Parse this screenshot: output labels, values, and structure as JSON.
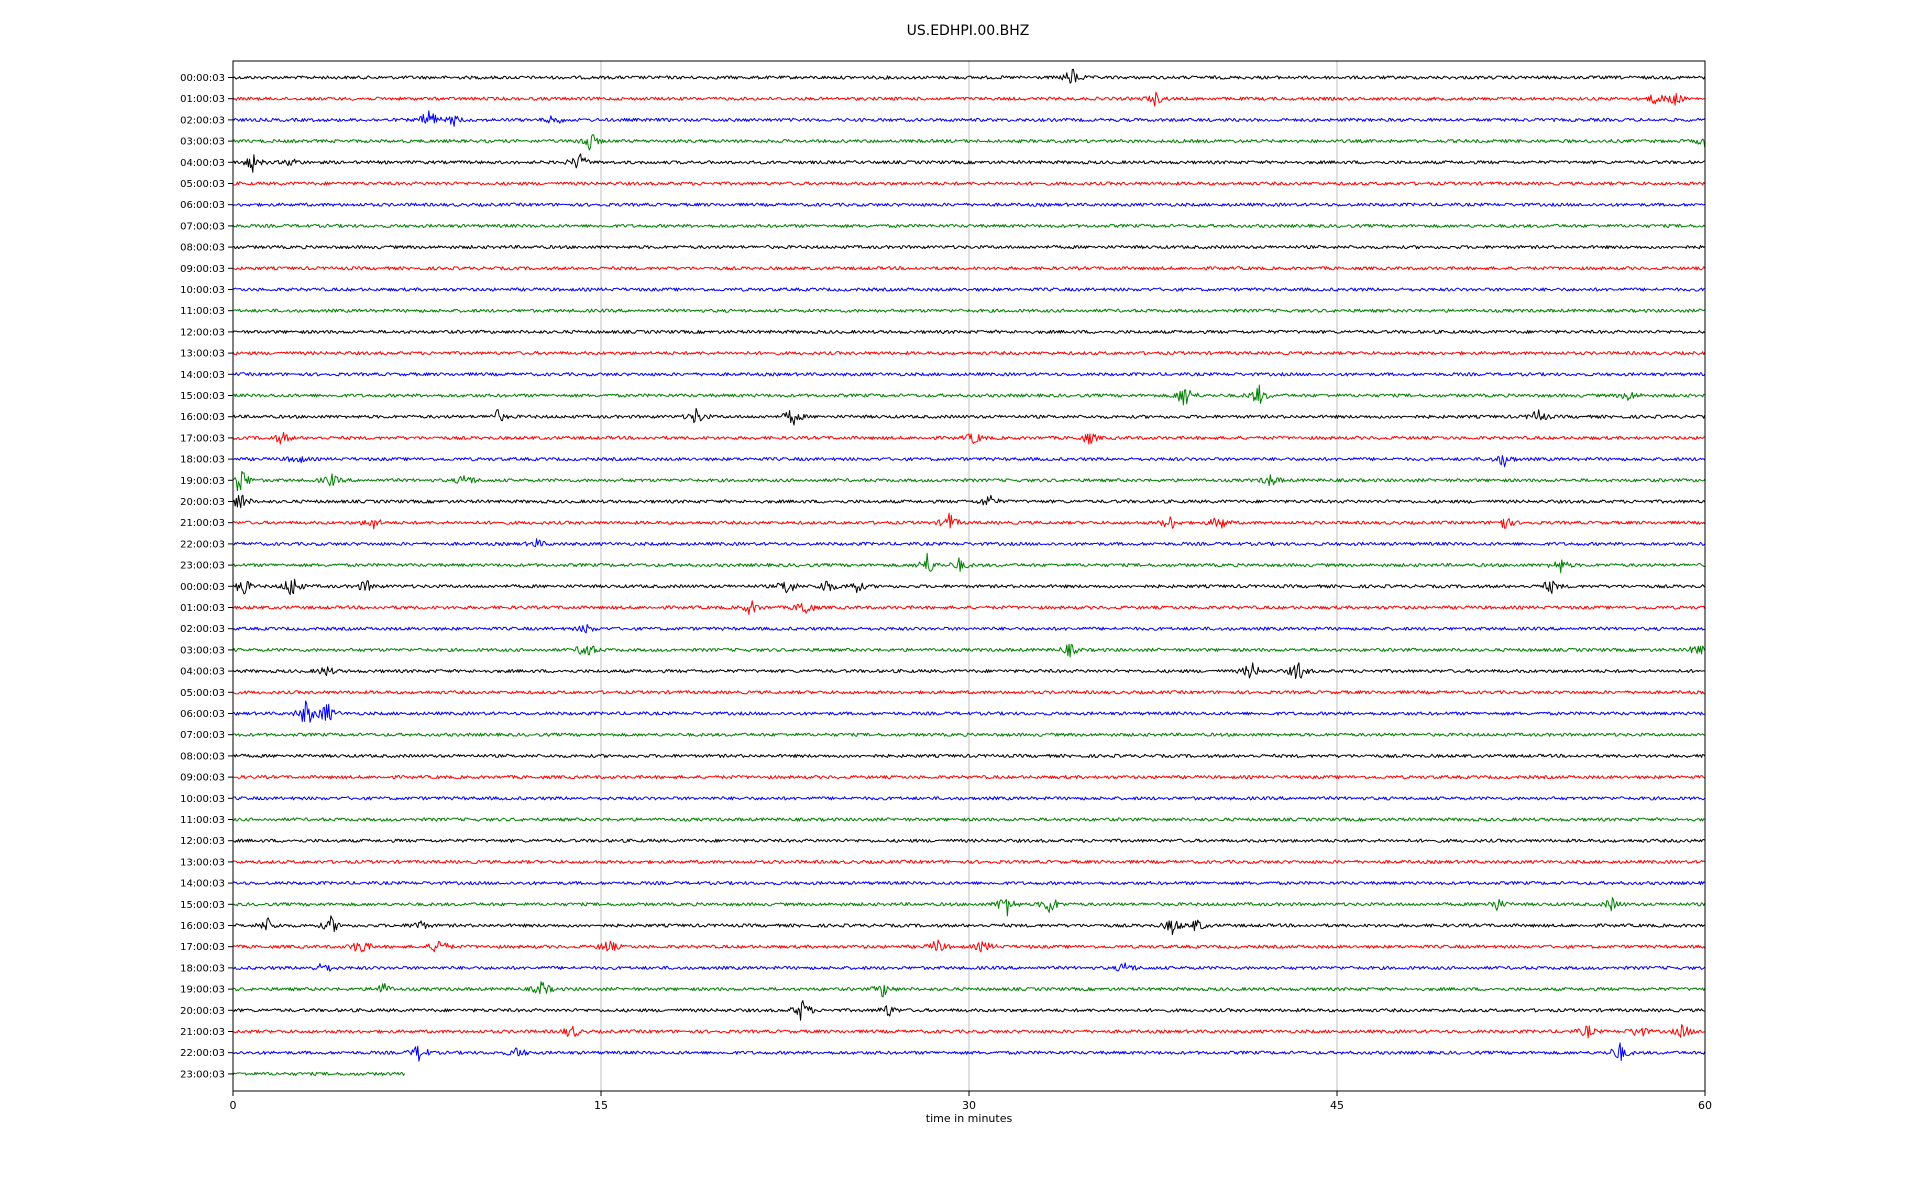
{
  "chart_data": {
    "type": "line",
    "title": "US.EDHPI.00.BHZ",
    "xlabel": "time in minutes",
    "ylabel": "",
    "xlim": [
      0,
      60
    ],
    "xticks": [
      0,
      15,
      30,
      45,
      60
    ],
    "xtick_labels": [
      "0",
      "15",
      "30",
      "45",
      "60"
    ],
    "grid": "vertical",
    "colors": [
      "#000000",
      "#ff0000",
      "#0000ff",
      "#008000"
    ],
    "row_labels": [
      "00:00:03",
      "01:00:03",
      "02:00:03",
      "03:00:03",
      "04:00:03",
      "05:00:03",
      "06:00:03",
      "07:00:03",
      "08:00:03",
      "09:00:03",
      "10:00:03",
      "11:00:03",
      "12:00:03",
      "13:00:03",
      "14:00:03",
      "15:00:03",
      "16:00:03",
      "17:00:03",
      "18:00:03",
      "19:00:03",
      "20:00:03",
      "21:00:03",
      "22:00:03",
      "23:00:03",
      "00:00:03",
      "01:00:03",
      "02:00:03",
      "03:00:03",
      "04:00:03",
      "05:00:03",
      "06:00:03",
      "07:00:03",
      "08:00:03",
      "09:00:03",
      "10:00:03",
      "11:00:03",
      "12:00:03",
      "13:00:03",
      "14:00:03",
      "15:00:03",
      "16:00:03",
      "17:00:03",
      "18:00:03",
      "19:00:03",
      "20:00:03",
      "21:00:03",
      "22:00:03",
      "23:00:03"
    ],
    "trace_end_minute": [
      60,
      60,
      60,
      60,
      60,
      60,
      60,
      60,
      60,
      60,
      60,
      60,
      60,
      60,
      60,
      60,
      60,
      60,
      60,
      60,
      60,
      60,
      60,
      60,
      60,
      60,
      60,
      60,
      60,
      60,
      60,
      60,
      60,
      60,
      60,
      60,
      60,
      60,
      60,
      60,
      60,
      60,
      60,
      60,
      60,
      60,
      60,
      7
    ],
    "events": [
      {
        "row": 0,
        "minute": 34.2,
        "amp": 0.9
      },
      {
        "row": 1,
        "minute": 37.6,
        "amp": 0.6
      },
      {
        "row": 1,
        "minute": 58.0,
        "amp": 0.6
      },
      {
        "row": 1,
        "minute": 58.7,
        "amp": 0.8
      },
      {
        "row": 2,
        "minute": 8.0,
        "amp": 1.2
      },
      {
        "row": 2,
        "minute": 9.0,
        "amp": 0.5
      },
      {
        "row": 2,
        "minute": 13.1,
        "amp": 0.5
      },
      {
        "row": 3,
        "minute": 14.5,
        "amp": 1.1
      },
      {
        "row": 3,
        "minute": 60.0,
        "amp": 0.5
      },
      {
        "row": 4,
        "minute": 0.8,
        "amp": 0.8
      },
      {
        "row": 4,
        "minute": 2.4,
        "amp": 0.4
      },
      {
        "row": 4,
        "minute": 14.1,
        "amp": 0.9
      },
      {
        "row": 15,
        "minute": 38.8,
        "amp": 1.3
      },
      {
        "row": 15,
        "minute": 41.8,
        "amp": 1.0
      },
      {
        "row": 15,
        "minute": 56.9,
        "amp": 0.5
      },
      {
        "row": 16,
        "minute": 10.8,
        "amp": 0.6
      },
      {
        "row": 16,
        "minute": 18.9,
        "amp": 0.8
      },
      {
        "row": 16,
        "minute": 22.8,
        "amp": 0.9
      },
      {
        "row": 16,
        "minute": 53.2,
        "amp": 0.7
      },
      {
        "row": 17,
        "minute": 2.0,
        "amp": 0.6
      },
      {
        "row": 17,
        "minute": 30.2,
        "amp": 0.6
      },
      {
        "row": 17,
        "minute": 34.9,
        "amp": 0.6
      },
      {
        "row": 18,
        "minute": 2.6,
        "amp": 0.5
      },
      {
        "row": 18,
        "minute": 51.8,
        "amp": 0.7
      },
      {
        "row": 19,
        "minute": 0.3,
        "amp": 1.5
      },
      {
        "row": 19,
        "minute": 4.0,
        "amp": 0.6
      },
      {
        "row": 19,
        "minute": 9.5,
        "amp": 0.7
      },
      {
        "row": 19,
        "minute": 42.3,
        "amp": 0.6
      },
      {
        "row": 20,
        "minute": 0.3,
        "amp": 0.9
      },
      {
        "row": 20,
        "minute": 30.8,
        "amp": 0.7
      },
      {
        "row": 21,
        "minute": 5.7,
        "amp": 0.6
      },
      {
        "row": 21,
        "minute": 29.2,
        "amp": 0.9
      },
      {
        "row": 21,
        "minute": 38.2,
        "amp": 0.7
      },
      {
        "row": 21,
        "minute": 40.2,
        "amp": 0.8
      },
      {
        "row": 21,
        "minute": 51.8,
        "amp": 0.7
      },
      {
        "row": 22,
        "minute": 12.4,
        "amp": 0.4
      },
      {
        "row": 23,
        "minute": 28.3,
        "amp": 1.1
      },
      {
        "row": 23,
        "minute": 29.6,
        "amp": 0.6
      },
      {
        "row": 23,
        "minute": 54.1,
        "amp": 0.7
      },
      {
        "row": 24,
        "minute": 0.4,
        "amp": 0.9
      },
      {
        "row": 24,
        "minute": 2.4,
        "amp": 1.2
      },
      {
        "row": 24,
        "minute": 5.4,
        "amp": 0.6
      },
      {
        "row": 24,
        "minute": 22.6,
        "amp": 0.9
      },
      {
        "row": 24,
        "minute": 24.2,
        "amp": 0.7
      },
      {
        "row": 24,
        "minute": 25.4,
        "amp": 0.6
      },
      {
        "row": 24,
        "minute": 53.7,
        "amp": 0.7
      },
      {
        "row": 25,
        "minute": 21.1,
        "amp": 0.7
      },
      {
        "row": 25,
        "minute": 23.3,
        "amp": 0.9
      },
      {
        "row": 26,
        "minute": 14.4,
        "amp": 0.4
      },
      {
        "row": 27,
        "minute": 14.4,
        "amp": 1.0
      },
      {
        "row": 27,
        "minute": 34.1,
        "amp": 0.6
      },
      {
        "row": 27,
        "minute": 59.7,
        "amp": 0.6
      },
      {
        "row": 28,
        "minute": 3.8,
        "amp": 0.5
      },
      {
        "row": 28,
        "minute": 41.5,
        "amp": 0.9
      },
      {
        "row": 28,
        "minute": 43.4,
        "amp": 1.0
      },
      {
        "row": 30,
        "minute": 3.0,
        "amp": 1.4
      },
      {
        "row": 30,
        "minute": 3.8,
        "amp": 1.2
      },
      {
        "row": 39,
        "minute": 31.5,
        "amp": 1.3
      },
      {
        "row": 39,
        "minute": 33.3,
        "amp": 1.0
      },
      {
        "row": 39,
        "minute": 51.5,
        "amp": 0.6
      },
      {
        "row": 39,
        "minute": 56.2,
        "amp": 0.6
      },
      {
        "row": 40,
        "minute": 1.4,
        "amp": 0.7
      },
      {
        "row": 40,
        "minute": 4.0,
        "amp": 0.8
      },
      {
        "row": 40,
        "minute": 7.6,
        "amp": 0.5
      },
      {
        "row": 40,
        "minute": 38.3,
        "amp": 0.8
      },
      {
        "row": 40,
        "minute": 39.3,
        "amp": 0.6
      },
      {
        "row": 41,
        "minute": 5.2,
        "amp": 0.9
      },
      {
        "row": 41,
        "minute": 8.4,
        "amp": 0.9
      },
      {
        "row": 41,
        "minute": 15.3,
        "amp": 0.7
      },
      {
        "row": 41,
        "minute": 28.7,
        "amp": 0.7
      },
      {
        "row": 41,
        "minute": 30.6,
        "amp": 0.6
      },
      {
        "row": 42,
        "minute": 3.7,
        "amp": 0.6
      },
      {
        "row": 42,
        "minute": 36.4,
        "amp": 0.6
      },
      {
        "row": 43,
        "minute": 6.1,
        "amp": 0.6
      },
      {
        "row": 43,
        "minute": 12.6,
        "amp": 0.8
      },
      {
        "row": 43,
        "minute": 26.5,
        "amp": 0.7
      },
      {
        "row": 44,
        "minute": 23.2,
        "amp": 1.1
      },
      {
        "row": 44,
        "minute": 26.7,
        "amp": 0.6
      },
      {
        "row": 45,
        "minute": 13.8,
        "amp": 0.7
      },
      {
        "row": 45,
        "minute": 55.2,
        "amp": 0.6
      },
      {
        "row": 45,
        "minute": 57.3,
        "amp": 0.7
      },
      {
        "row": 45,
        "minute": 59.1,
        "amp": 0.7
      },
      {
        "row": 46,
        "minute": 7.6,
        "amp": 0.9
      },
      {
        "row": 46,
        "minute": 11.6,
        "amp": 0.5
      },
      {
        "row": 46,
        "minute": 56.5,
        "amp": 1.0
      }
    ]
  }
}
